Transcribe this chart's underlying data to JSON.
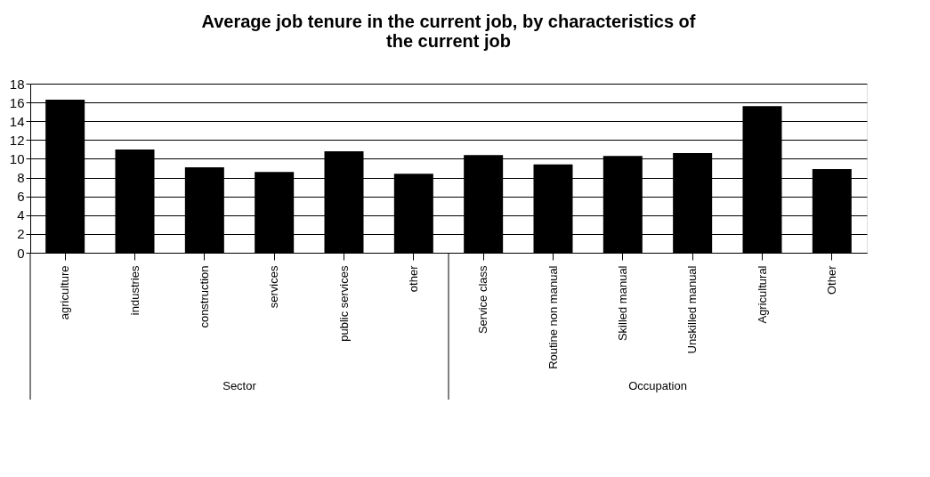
{
  "chart_data": {
    "type": "bar",
    "title": "Average job tenure in the current job, by characteristics of the current job",
    "categories": [
      "agriculture",
      "industries",
      "construction",
      "services",
      "public services",
      "other",
      "Service class",
      "Routine non manual",
      "Skilled manual",
      "Unskilled manual",
      "Agricultural",
      "Other"
    ],
    "values": [
      16.3,
      11.0,
      9.1,
      8.6,
      10.8,
      8.4,
      10.4,
      9.4,
      10.3,
      10.6,
      15.6,
      8.9
    ],
    "color": "#000000",
    "ylim": [
      0,
      18
    ],
    "yticks": [
      0,
      2,
      4,
      6,
      8,
      10,
      12,
      14,
      16,
      18
    ],
    "grid": "y",
    "annotations": [
      "Sector",
      "Occupation"
    ]
  }
}
